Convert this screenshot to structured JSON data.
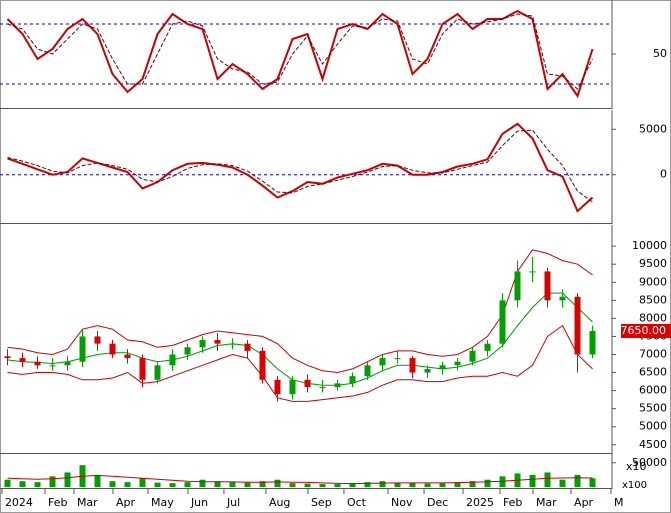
{
  "chart_data": [
    {
      "type": "line",
      "ylim": [
        -3,
        102
      ],
      "yticks": [
        50
      ],
      "levels": [
        20,
        80
      ],
      "level_color": "#0000cc",
      "series": [
        {
          "color": "#cc0000",
          "values": [
            85,
            70,
            45,
            55,
            75,
            85,
            70,
            30,
            12,
            25,
            70,
            90,
            80,
            75,
            25,
            40,
            30,
            15,
            25,
            65,
            70,
            25,
            75,
            80,
            75,
            90,
            80,
            30,
            45,
            80,
            90,
            75,
            85,
            85,
            93,
            85,
            15,
            30,
            8,
            55
          ]
        },
        {
          "color": "#660000",
          "dash": true,
          "values": [
            80,
            75,
            55,
            50,
            65,
            80,
            75,
            45,
            20,
            20,
            50,
            80,
            83,
            78,
            45,
            35,
            32,
            20,
            22,
            50,
            68,
            40,
            60,
            78,
            76,
            85,
            83,
            45,
            40,
            70,
            85,
            80,
            82,
            85,
            90,
            88,
            30,
            28,
            15,
            45
          ]
        }
      ]
    },
    {
      "type": "line",
      "ylim": [
        -5200,
        6900
      ],
      "yticks": [
        5000,
        0
      ],
      "levels": [
        0
      ],
      "level_color": "#0000cc",
      "series": [
        {
          "color": "#cc0000",
          "values": [
            1800,
            1200,
            600,
            0,
            300,
            1800,
            1300,
            800,
            300,
            -1500,
            -800,
            500,
            1200,
            1300,
            1100,
            800,
            0,
            -1200,
            -2500,
            -1800,
            -800,
            -1000,
            -300,
            100,
            500,
            1200,
            1000,
            0,
            0,
            300,
            900,
            1200,
            1700,
            4500,
            5600,
            4000,
            500,
            -200,
            -4000,
            -2500
          ]
        },
        {
          "color": "#660000",
          "dash": true,
          "values": [
            1900,
            1500,
            1000,
            400,
            200,
            1000,
            1300,
            1000,
            600,
            -500,
            -800,
            -200,
            700,
            1100,
            1200,
            1000,
            400,
            -700,
            -1900,
            -2000,
            -1300,
            -1000,
            -600,
            -200,
            300,
            900,
            1000,
            500,
            200,
            200,
            600,
            1000,
            1400,
            3200,
            4800,
            4900,
            2800,
            1000,
            -1800,
            -3000
          ]
        }
      ]
    },
    {
      "type": "candlestick",
      "ylim": [
        4300,
        10530
      ],
      "yticks": [
        10000,
        9500,
        9000,
        8500,
        8000,
        7500,
        7000,
        6500,
        6000,
        5500,
        5000,
        4500
      ],
      "unit_label": "x10",
      "up_color": "#00a000",
      "down_color": "#dd0000",
      "last": {
        "value": 7650,
        "label": "7650.00"
      },
      "open": [
        6950,
        6900,
        6800,
        6700,
        6700,
        6800,
        7500,
        7300,
        7000,
        6900,
        6300,
        6700,
        7000,
        7200,
        7400,
        7300,
        7300,
        7100,
        6300,
        5900,
        6300,
        6100,
        6100,
        6200,
        6400,
        6700,
        6900,
        6900,
        6500,
        6600,
        6700,
        6800,
        7100,
        7300,
        8500,
        9300,
        9300,
        8500,
        8600,
        7000
      ],
      "high": [
        7150,
        7050,
        6950,
        6900,
        6950,
        7700,
        7650,
        7400,
        7150,
        7000,
        6800,
        7150,
        7300,
        7500,
        7600,
        7450,
        7400,
        7200,
        6400,
        6400,
        6450,
        6300,
        6300,
        6500,
        6800,
        7000,
        7100,
        6950,
        6700,
        6800,
        6900,
        7200,
        7400,
        8700,
        9600,
        9700,
        9400,
        8800,
        8700,
        7800
      ],
      "low": [
        6700,
        6650,
        6600,
        6550,
        6550,
        6650,
        7100,
        6900,
        6750,
        6100,
        6200,
        6550,
        6850,
        7050,
        7100,
        7150,
        6900,
        6200,
        5700,
        5750,
        5950,
        5950,
        6000,
        6100,
        6300,
        6550,
        6750,
        6350,
        6350,
        6450,
        6550,
        6700,
        6950,
        7200,
        8300,
        9000,
        8300,
        8300,
        6500,
        6900
      ],
      "close": [
        6900,
        6800,
        6700,
        6700,
        6800,
        7500,
        7300,
        7000,
        6900,
        6300,
        6700,
        7000,
        7200,
        7400,
        7300,
        7300,
        7100,
        6300,
        5900,
        6300,
        6100,
        6100,
        6200,
        6400,
        6700,
        6900,
        6900,
        6500,
        6600,
        6700,
        6800,
        7100,
        7300,
        8500,
        9300,
        9300,
        8500,
        8600,
        7000,
        7650
      ],
      "series": [
        {
          "color": "#009900",
          "values": [
            6850,
            6800,
            6780,
            6750,
            6800,
            6900,
            7000,
            7050,
            7050,
            6900,
            6800,
            6850,
            6950,
            7100,
            7250,
            7300,
            7250,
            7000,
            6600,
            6300,
            6200,
            6150,
            6150,
            6200,
            6350,
            6550,
            6700,
            6700,
            6650,
            6600,
            6650,
            6750,
            6900,
            7250,
            7800,
            8300,
            8700,
            8700,
            8300,
            7900
          ]
        },
        {
          "color": "#cc0000",
          "values": [
            7200,
            7150,
            7050,
            7000,
            7150,
            7700,
            7800,
            7700,
            7400,
            7350,
            7200,
            7250,
            7400,
            7550,
            7650,
            7600,
            7550,
            7500,
            7300,
            6900,
            6700,
            6550,
            6500,
            6600,
            6800,
            7000,
            7100,
            7100,
            7000,
            6950,
            7000,
            7200,
            7500,
            8100,
            9300,
            9900,
            9800,
            9600,
            9500,
            9200
          ]
        },
        {
          "color": "#cc0000",
          "values": [
            6500,
            6450,
            6500,
            6500,
            6450,
            6300,
            6300,
            6350,
            6500,
            6200,
            6250,
            6400,
            6550,
            6700,
            6850,
            7000,
            6900,
            6400,
            5800,
            5700,
            5700,
            5750,
            5800,
            5850,
            5950,
            6150,
            6300,
            6300,
            6250,
            6250,
            6350,
            6400,
            6400,
            6500,
            6400,
            6700,
            7500,
            7800,
            7000,
            6600
          ]
        }
      ]
    },
    {
      "type": "bar",
      "ylim": [
        0,
        66000
      ],
      "yticks": [
        50000
      ],
      "unit_label": "x100",
      "color": "#00a000",
      "values": [
        15000,
        12000,
        10000,
        22000,
        30000,
        45000,
        25000,
        12000,
        10000,
        18000,
        9000,
        8000,
        10000,
        15000,
        12000,
        10000,
        9000,
        12000,
        15000,
        8000,
        7000,
        6000,
        6000,
        8000,
        10000,
        12000,
        9000,
        8000,
        7000,
        8000,
        10000,
        12000,
        15000,
        22000,
        28000,
        25000,
        30000,
        15000,
        25000,
        18000
      ],
      "series": [
        {
          "color": "#cc0000",
          "values": [
            18000,
            17000,
            16000,
            17000,
            19000,
            22000,
            24000,
            22000,
            20000,
            18000,
            16000,
            14000,
            12000,
            11000,
            11000,
            10500,
            10000,
            10000,
            10500,
            10000,
            9500,
            8500,
            7500,
            7000,
            7500,
            8000,
            8500,
            8500,
            8500,
            8500,
            9000,
            10000,
            11000,
            12000,
            14000,
            16000,
            18000,
            18500,
            19000,
            18500
          ]
        }
      ],
      "xlim": [
        -0.5,
        40.3
      ],
      "xticks": [
        {
          "value": -0.37,
          "label": "2024"
        },
        {
          "value": 2.5,
          "label": "Feb"
        },
        {
          "value": 4.43,
          "label": "Mar"
        },
        {
          "value": 7.03,
          "label": "Apr"
        },
        {
          "value": 9.37,
          "label": "May"
        },
        {
          "value": 12.03,
          "label": "Jun"
        },
        {
          "value": 14.43,
          "label": "Jul"
        },
        {
          "value": 17.23,
          "label": "Aug"
        },
        {
          "value": 20.03,
          "label": "Sep"
        },
        {
          "value": 22.43,
          "label": "Oct"
        },
        {
          "value": 25.37,
          "label": "Nov"
        },
        {
          "value": 27.77,
          "label": "Dec"
        },
        {
          "value": 30.37,
          "label": "2025"
        },
        {
          "value": 32.83,
          "label": "Feb"
        },
        {
          "value": 35.03,
          "label": "Mar"
        },
        {
          "value": 37.57,
          "label": "Apr"
        },
        {
          "value": 40.23,
          "label": "M"
        }
      ]
    }
  ]
}
